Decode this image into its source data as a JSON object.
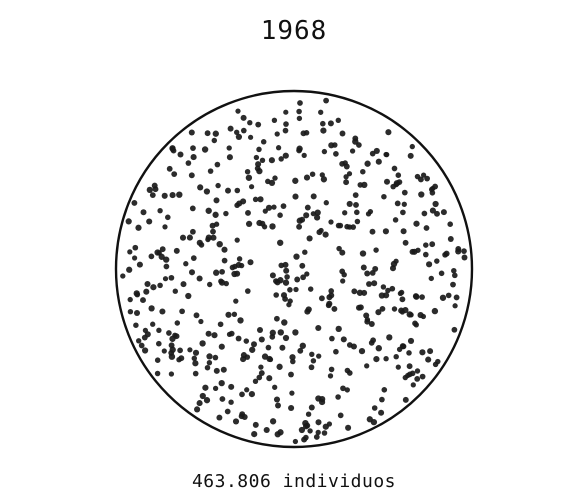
{
  "title": "1968",
  "caption": "463.806 individuos",
  "figure": {
    "shape": "circle",
    "outline_color": "#111111",
    "dot_color": "#1a1a1a"
  }
}
